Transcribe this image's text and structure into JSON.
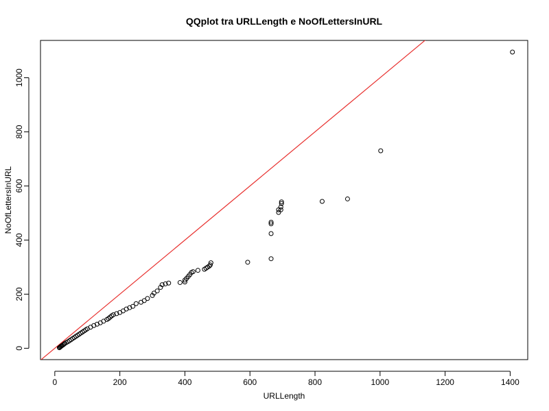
{
  "chart_data": {
    "type": "scatter",
    "title": "QQplot tra URLLength e NoOfLettersInURL",
    "xlabel": "URLLength",
    "ylabel": "NoOfLettersInURL",
    "xlim": [
      -44,
      1454
    ],
    "ylim": [
      -42,
      1138
    ],
    "xticks": [
      0,
      200,
      400,
      600,
      800,
      1000,
      1200,
      1400
    ],
    "yticks": [
      0,
      200,
      400,
      600,
      800,
      1000
    ],
    "grid": false,
    "legend": "none",
    "reference_line": {
      "intercept": 0,
      "slope": 1,
      "color": "#e8312f"
    },
    "points": [
      [
        14,
        2
      ],
      [
        16,
        4
      ],
      [
        18,
        6
      ],
      [
        20,
        8
      ],
      [
        22,
        10
      ],
      [
        25,
        12
      ],
      [
        28,
        15
      ],
      [
        31,
        18
      ],
      [
        35,
        21
      ],
      [
        40,
        24
      ],
      [
        45,
        28
      ],
      [
        50,
        32
      ],
      [
        55,
        36
      ],
      [
        60,
        40
      ],
      [
        65,
        44
      ],
      [
        70,
        48
      ],
      [
        75,
        52
      ],
      [
        80,
        56
      ],
      [
        85,
        60
      ],
      [
        90,
        64
      ],
      [
        95,
        68
      ],
      [
        100,
        72
      ],
      [
        110,
        78
      ],
      [
        120,
        84
      ],
      [
        130,
        89
      ],
      [
        140,
        94
      ],
      [
        150,
        100
      ],
      [
        160,
        106
      ],
      [
        165,
        110
      ],
      [
        170,
        115
      ],
      [
        175,
        120
      ],
      [
        180,
        124
      ],
      [
        190,
        128
      ],
      [
        200,
        132
      ],
      [
        210,
        138
      ],
      [
        220,
        145
      ],
      [
        230,
        150
      ],
      [
        240,
        155
      ],
      [
        250,
        165
      ],
      [
        265,
        170
      ],
      [
        275,
        176
      ],
      [
        285,
        184
      ],
      [
        300,
        195
      ],
      [
        305,
        204
      ],
      [
        315,
        212
      ],
      [
        325,
        225
      ],
      [
        330,
        235
      ],
      [
        340,
        238
      ],
      [
        350,
        241
      ],
      [
        385,
        243
      ],
      [
        400,
        245
      ],
      [
        400,
        252
      ],
      [
        405,
        258
      ],
      [
        410,
        265
      ],
      [
        415,
        272
      ],
      [
        420,
        280
      ],
      [
        425,
        283
      ],
      [
        440,
        288
      ],
      [
        460,
        292
      ],
      [
        465,
        296
      ],
      [
        470,
        300
      ],
      [
        475,
        304
      ],
      [
        478,
        308
      ],
      [
        480,
        316
      ],
      [
        593,
        318
      ],
      [
        665,
        331
      ],
      [
        665,
        424
      ],
      [
        665,
        460
      ],
      [
        665,
        466
      ],
      [
        688,
        502
      ],
      [
        688,
        512
      ],
      [
        695,
        512
      ],
      [
        695,
        522
      ],
      [
        697,
        535
      ],
      [
        697,
        541
      ],
      [
        822,
        543
      ],
      [
        900,
        552
      ],
      [
        1002,
        730
      ],
      [
        1407,
        1095
      ]
    ]
  }
}
